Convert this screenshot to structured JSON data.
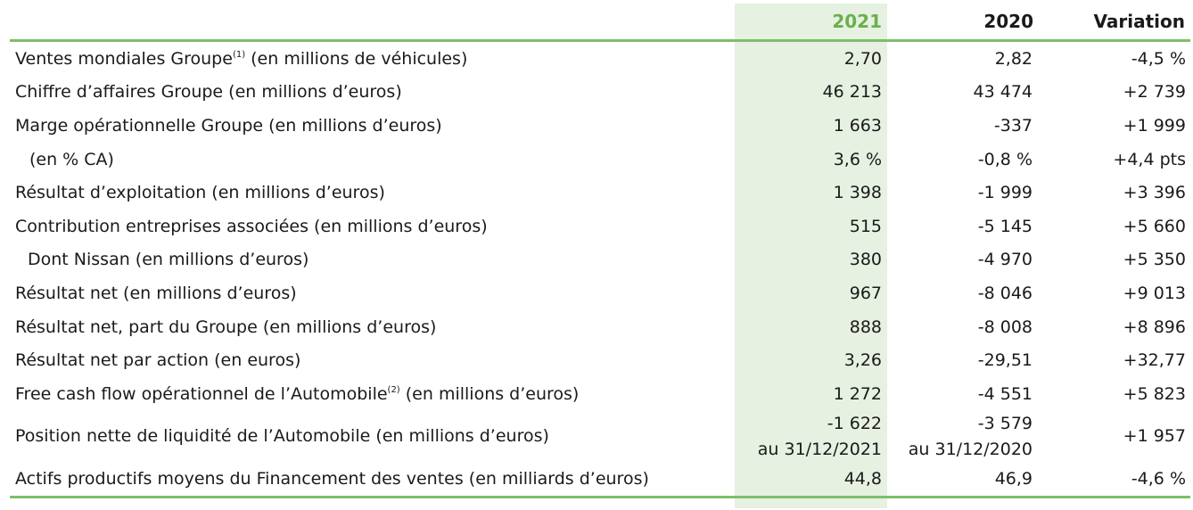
{
  "header": {
    "label": "",
    "y2021": "2021",
    "y2020": "2020",
    "variation": "Variation"
  },
  "rows": [
    {
      "label": "Ventes mondiales Groupe",
      "sup": "(1)",
      "suffix": " (en millions de véhicules)",
      "v2021": "2,70",
      "v2020": "2,82",
      "var": "-4,5 %"
    },
    {
      "label": "Chiffre d’affaires Groupe (en millions d’euros)",
      "v2021": "46 213",
      "v2020": "43 474",
      "var": "+2 739"
    },
    {
      "label": "Marge opérationnelle Groupe (en millions d’euros)",
      "v2021": "1 663",
      "v2020": "-337",
      "var": "+1 999"
    },
    {
      "label": "(en % CA)",
      "v2021": "3,6 %",
      "v2020": "-0,8 %",
      "var": "+4,4 pts"
    },
    {
      "label": "Résultat d’exploitation (en millions d’euros)",
      "v2021": "1 398",
      "v2020": "-1 999",
      "var": "+3 396"
    },
    {
      "label": "Contribution entreprises associées (en millions d’euros)",
      "v2021": "515",
      "v2020": "-5 145",
      "var": "+5 660"
    },
    {
      "label": "Dont Nissan (en millions d’euros)",
      "v2021": "380",
      "v2020": "-4 970",
      "var": "+5 350"
    },
    {
      "label": "Résultat net (en millions d’euros)",
      "v2021": "967",
      "v2020": "-8 046",
      "var": "+9 013"
    },
    {
      "label": "Résultat net, part du Groupe (en millions d’euros)",
      "v2021": "888",
      "v2020": "-8 008",
      "var": "+8 896"
    },
    {
      "label": "Résultat net par action (en euros)",
      "v2021": "3,26",
      "v2020": "-29,51",
      "var": "+32,77"
    },
    {
      "label": "Free cash flow opérationnel de l’Automobile",
      "sup": "(2)",
      "suffix": " (en millions d’euros)",
      "v2021": "1 272",
      "v2020": "-4 551",
      "var": "+5 823"
    },
    {
      "label": "Position nette de liquidité de l’Automobile (en millions d’euros)",
      "v2021": "-1 622",
      "v2021_date": "au 31/12/2021",
      "v2020": "-3 579",
      "v2020_date": "au 31/12/2020",
      "var": "+1 957"
    },
    {
      "label": "Actifs productifs moyens du Financement des ventes (en milliards d’euros)",
      "v2021": "44,8",
      "v2020": "46,9",
      "var": "-4,6 %"
    }
  ],
  "colors": {
    "accent_green": "#6ab04c",
    "rule_green": "#7cbf6a",
    "highlight_bg": "#e6f1e1"
  }
}
